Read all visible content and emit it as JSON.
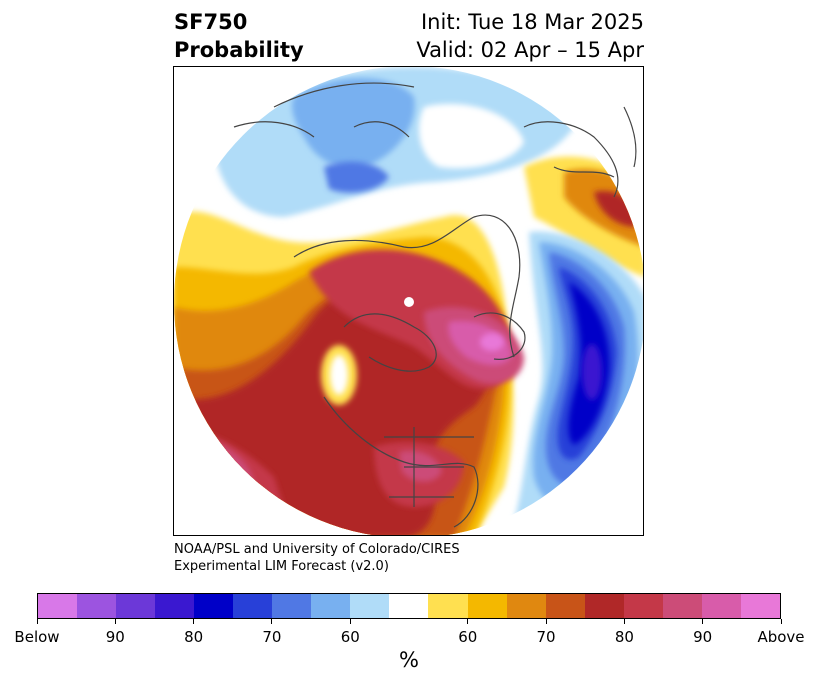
{
  "title": {
    "left_line1": "SF750",
    "left_line2": "Probability",
    "right_line1": "Init: Tue 18 Mar 2025",
    "right_line2": "Valid: 02 Apr – 15 Apr"
  },
  "credit": {
    "line1": "NOAA/PSL and University of Colorado/CIRES",
    "line2": "Experimental LIM Forecast (v2.0)"
  },
  "map": {
    "projection": "north-polar-stereographic",
    "color_scale": [
      {
        "color": "#d878e8"
      },
      {
        "color": "#9c54e0"
      },
      {
        "color": "#6c38d8"
      },
      {
        "color": "#3a18d0"
      },
      {
        "color": "#0000c8"
      },
      {
        "color": "#2840d8"
      },
      {
        "color": "#5078e4"
      },
      {
        "color": "#78b0f0"
      },
      {
        "color": "#b0dcf8"
      },
      {
        "color": "#ffffff"
      },
      {
        "color": "#ffe050"
      },
      {
        "color": "#f4b800"
      },
      {
        "color": "#e08810"
      },
      {
        "color": "#c85418"
      },
      {
        "color": "#b02828"
      },
      {
        "color": "#c43848"
      },
      {
        "color": "#cc4c78"
      },
      {
        "color": "#d85caa"
      },
      {
        "color": "#e878d8"
      }
    ]
  },
  "colorbar": {
    "tick_labels": [
      "Below",
      "90",
      "80",
      "70",
      "60",
      "60",
      "70",
      "80",
      "90",
      "Above"
    ],
    "unit_label": "%"
  }
}
